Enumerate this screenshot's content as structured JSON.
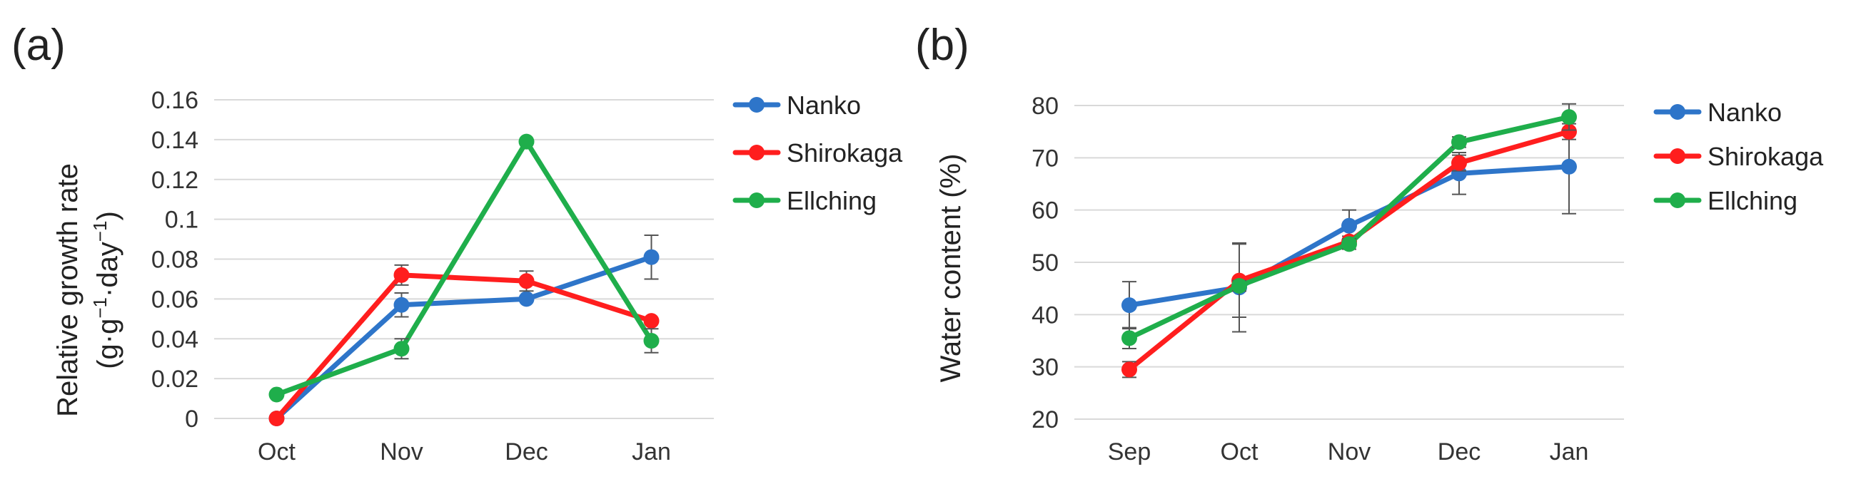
{
  "figure": {
    "panel_a_label": "(a)",
    "panel_b_label": "(b)"
  },
  "colors": {
    "Nanko": "#2E75C9",
    "Shirokaga": "#FF1E1E",
    "Ellching": "#1FAE4B",
    "grid": "#D9D9D9",
    "errorbar": "#555555"
  },
  "chart_data": [
    {
      "id": "a",
      "type": "line",
      "title": "",
      "ylabel_line1": "Relative growth rate",
      "ylabel_line2": "(g·g−1·day−1)",
      "xlabel": "",
      "categories": [
        "Oct",
        "Nov",
        "Dec",
        "Jan"
      ],
      "ylim": [
        0,
        0.16
      ],
      "yticks": [
        0,
        0.02,
        0.04,
        0.06,
        0.08,
        0.1,
        0.12,
        0.14,
        0.16
      ],
      "ytick_labels": [
        "0",
        "0.02",
        "0.04",
        "0.06",
        "0.08",
        "0.1",
        "0.12",
        "0.14",
        "0.16"
      ],
      "grid": true,
      "legend_position": "right",
      "series": [
        {
          "name": "Nanko",
          "values": [
            0.0,
            0.057,
            0.06,
            0.081
          ],
          "errors": [
            0,
            0.006,
            0.0,
            0.011
          ]
        },
        {
          "name": "Shirokaga",
          "values": [
            0.0,
            0.072,
            0.069,
            0.049
          ],
          "errors": [
            0,
            0.005,
            0.005,
            0.0
          ]
        },
        {
          "name": "Ellching",
          "values": [
            0.012,
            0.035,
            0.139,
            0.039
          ],
          "errors": [
            0,
            0.005,
            0.0,
            0.006
          ]
        }
      ]
    },
    {
      "id": "b",
      "type": "line",
      "title": "",
      "ylabel": "Water content (%)",
      "xlabel": "",
      "categories": [
        "Sep",
        "Oct",
        "Nov",
        "Dec",
        "Jan"
      ],
      "ylim": [
        20,
        80
      ],
      "yticks": [
        20,
        30,
        40,
        50,
        60,
        70,
        80
      ],
      "ytick_labels": [
        "20",
        "30",
        "40",
        "50",
        "60",
        "70",
        "80"
      ],
      "grid": true,
      "legend_position": "right",
      "series": [
        {
          "name": "Nanko",
          "values": [
            41.8,
            45.2,
            57.0,
            67.0,
            68.3
          ],
          "errors": [
            4.5,
            8.5,
            3.0,
            4.0,
            9.0
          ]
        },
        {
          "name": "Shirokaga",
          "values": [
            29.5,
            46.5,
            54.0,
            69.0,
            75.0
          ],
          "errors": [
            1.5,
            7.0,
            1.0,
            1.5,
            1.5
          ]
        },
        {
          "name": "Ellching",
          "values": [
            35.5,
            45.5,
            53.5,
            73.0,
            77.8
          ],
          "errors": [
            2.0,
            1.0,
            1.0,
            1.0,
            2.5
          ]
        }
      ]
    }
  ]
}
